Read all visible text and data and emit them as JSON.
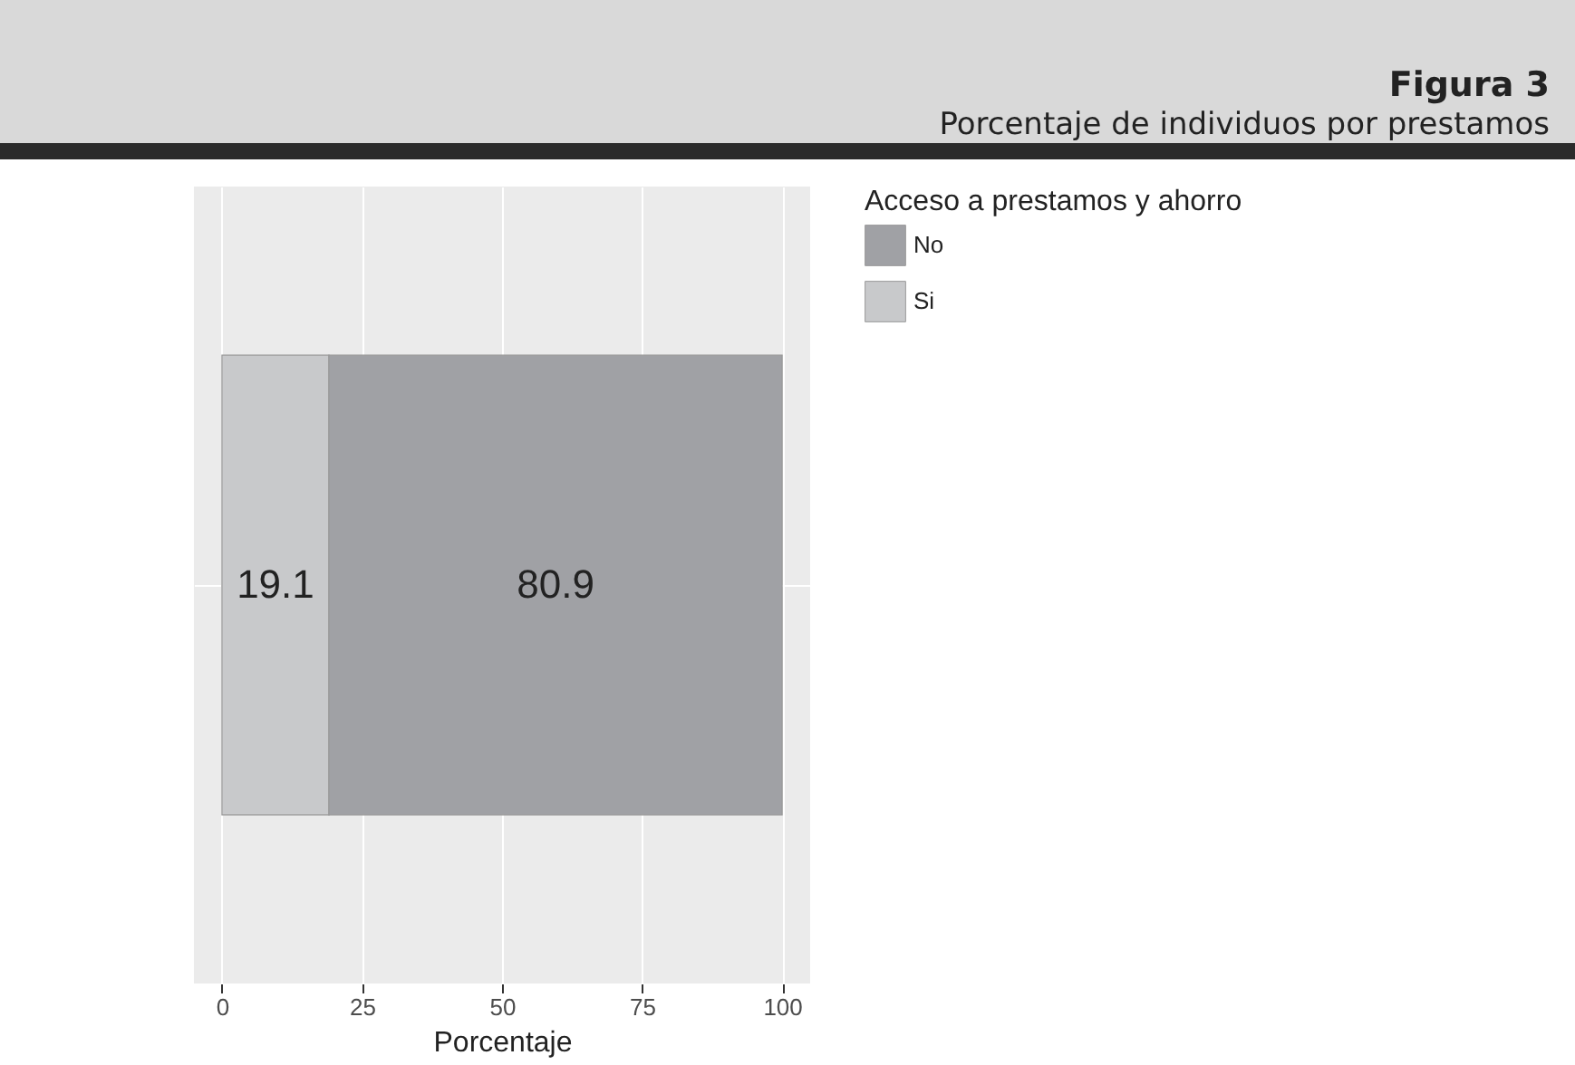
{
  "chart_data": {
    "type": "bar",
    "title": "Figura 3",
    "subtitle": "Porcentaje de individuos por prestamos",
    "xlabel": "Porcentaje",
    "legend_title": "Acceso a prestamos y ahorro",
    "orientation": "horizontal",
    "stacked": true,
    "categories": [
      null
    ],
    "series": [
      {
        "name": "Si",
        "color": "#c8c9cb",
        "values": [
          19.1
        ]
      },
      {
        "name": "No",
        "color": "#a0a1a5",
        "values": [
          80.9
        ]
      }
    ],
    "xlim": [
      -5,
      105
    ],
    "xticks": [
      0,
      25,
      50,
      75,
      100
    ],
    "grid": true,
    "legend": "right",
    "data_labels": true
  }
}
